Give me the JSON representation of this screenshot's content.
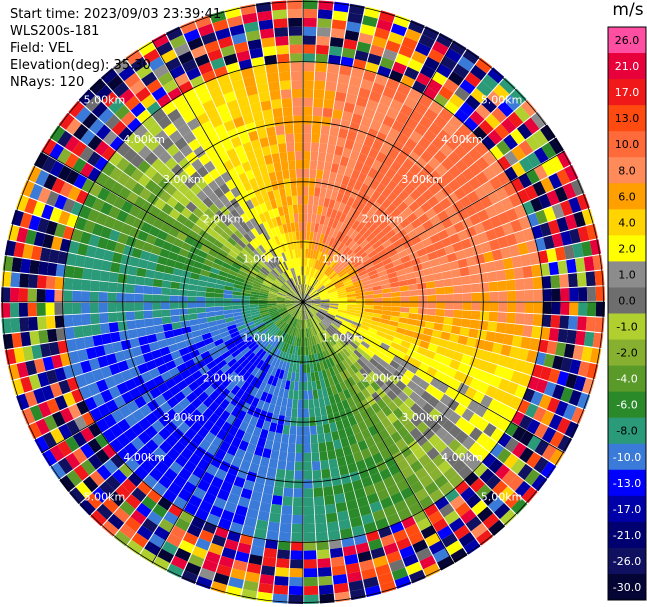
{
  "info": {
    "start_time": "Start time: 2023/09/03 23:39:41",
    "instrument": "WLS200s-181",
    "field": "Field: VEL",
    "elevation": "Elevation(deg): 35.30",
    "nrays": "NRays: 120"
  },
  "colorbar": {
    "unit": "m/s",
    "levels": [
      {
        "label": "26.0",
        "color": "#ff4fa3"
      },
      {
        "label": "21.0",
        "color": "#e8003a"
      },
      {
        "label": "17.0",
        "color": "#f01818"
      },
      {
        "label": "13.0",
        "color": "#ff4a10"
      },
      {
        "label": "10.0",
        "color": "#ff6a3a"
      },
      {
        "label": "8.0",
        "color": "#ff8a5a"
      },
      {
        "label": "6.0",
        "color": "#ffa000"
      },
      {
        "label": "4.0",
        "color": "#ffd400"
      },
      {
        "label": "2.0",
        "color": "#ffff00"
      },
      {
        "label": "1.0",
        "color": "#8c8c8c"
      },
      {
        "label": "0.0",
        "color": "#6e6e6e"
      },
      {
        "label": "-1.0",
        "color": "#b0d030"
      },
      {
        "label": "-2.0",
        "color": "#88b030"
      },
      {
        "label": "-4.0",
        "color": "#5a9a28"
      },
      {
        "label": "-6.0",
        "color": "#2a8a2a"
      },
      {
        "label": "-8.0",
        "color": "#2a9a78"
      },
      {
        "label": "-10.0",
        "color": "#3a7ad8"
      },
      {
        "label": "-13.0",
        "color": "#0000ff"
      },
      {
        "label": "-17.0",
        "color": "#0000a8"
      },
      {
        "label": "-21.0",
        "color": "#000070"
      },
      {
        "label": "-26.0",
        "color": "#101060"
      },
      {
        "label": "-30.0",
        "color": "#050535"
      }
    ]
  },
  "chart_data": {
    "type": "heatmap",
    "subtype": "polar-ppi",
    "field": "VEL",
    "n_rays": 120,
    "range_rings_km": [
      1,
      2,
      3,
      4,
      5
    ],
    "ring_labels": [
      "1.00km",
      "2.00km",
      "3.00km",
      "4.00km",
      "5.00km"
    ],
    "max_range_km": 5.0,
    "vmin": -30.0,
    "vmax": 26.0,
    "grid_lines": true,
    "sectors": [
      {
        "azimuth_deg_range": [
          300,
          60
        ],
        "description_values_mps": [
          8,
          10,
          13,
          6,
          4,
          2
        ]
      },
      {
        "azimuth_deg_range": [
          60,
          150
        ],
        "description_values_mps": [
          13,
          10,
          8,
          6,
          4,
          2,
          1
        ]
      },
      {
        "azimuth_deg_range": [
          150,
          210
        ],
        "description_values_mps": [
          -2,
          -4,
          -6,
          -8,
          -10
        ]
      },
      {
        "azimuth_deg_range": [
          210,
          300
        ],
        "description_values_mps": [
          -1,
          -2,
          -4,
          -6,
          -8,
          -10
        ]
      }
    ]
  }
}
